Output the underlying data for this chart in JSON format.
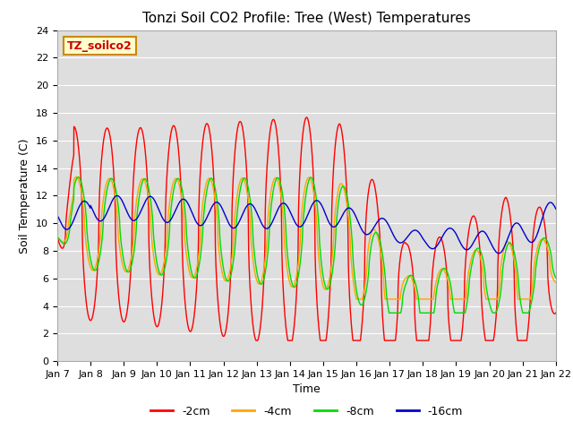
{
  "title": "Tonzi Soil CO2 Profile: Tree (West) Temperatures",
  "xlabel": "Time",
  "ylabel": "Soil Temperature (C)",
  "legend_title": "TZ_soilco2",
  "ylim": [
    0,
    24
  ],
  "x_tick_labels": [
    "Jan 7",
    "Jan 8",
    "Jan 9",
    "Jan 10",
    "Jan 11",
    "Jan 12",
    "Jan 13",
    "Jan 14",
    "Jan 15",
    "Jan 16",
    "Jan 17",
    "Jan 18",
    "Jan 19",
    "Jan 20",
    "Jan 21",
    "Jan 22"
  ],
  "series": [
    {
      "label": "-2cm",
      "color": "#ff0000",
      "lw": 1.0
    },
    {
      "label": "-4cm",
      "color": "#ffa500",
      "lw": 1.0
    },
    {
      "label": "-8cm",
      "color": "#00dd00",
      "lw": 1.0
    },
    {
      "label": "-16cm",
      "color": "#0000cc",
      "lw": 1.0
    }
  ],
  "bg_color": "#dedede",
  "fig_color": "#ffffff",
  "title_fontsize": 11,
  "axis_label_fontsize": 9,
  "tick_fontsize": 8,
  "legend_fontsize": 9
}
